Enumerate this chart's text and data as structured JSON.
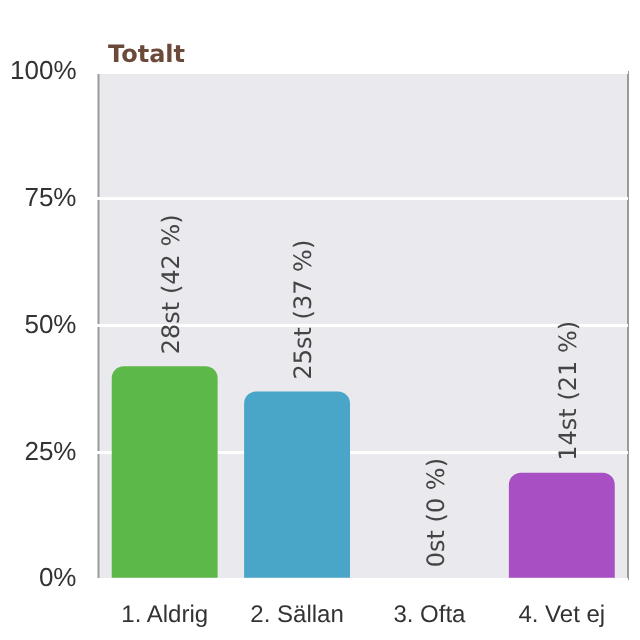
{
  "chart_data": {
    "type": "bar",
    "title": "Totalt",
    "categories": [
      "1. Aldrig",
      "2. Sällan",
      "3. Ofta",
      "4. Vet ej"
    ],
    "values": [
      42,
      37,
      0,
      21
    ],
    "colors": [
      "#5db84a",
      "#4aa6c8",
      "#8a8a8a",
      "#a84fc4"
    ],
    "value_labels": [
      "28st (42 %)",
      "25st (37 %)",
      "0st (0 %)",
      "14st (21 %)"
    ],
    "ylim": [
      0,
      100
    ],
    "yticks": [
      {
        "value": 0,
        "label": "0%"
      },
      {
        "value": 25,
        "label": "25%"
      },
      {
        "value": 50,
        "label": "50%"
      },
      {
        "value": 75,
        "label": "75%"
      },
      {
        "value": 100,
        "label": "100%"
      }
    ],
    "grid": "y",
    "legend": false
  }
}
